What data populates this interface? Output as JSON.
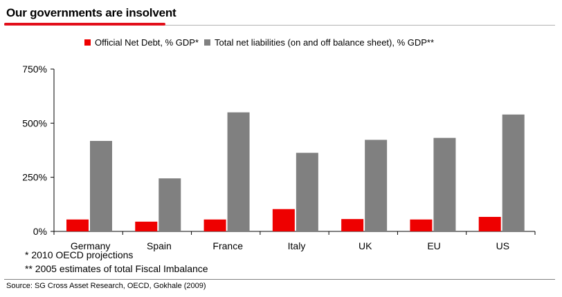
{
  "title": "Our governments are insolvent",
  "colors": {
    "accent": "#e20f1a",
    "series1": "#ee0000",
    "series2": "#808080",
    "axis": "#000000"
  },
  "notes": {
    "note1": "* 2010 OECD projections",
    "note2": "** 2005 estimates of total Fiscal Imbalance"
  },
  "source": "Source: SG Cross Asset Research, OECD, Gokhale (2009)",
  "chart_data": {
    "type": "bar",
    "categories": [
      "Germany",
      "Spain",
      "France",
      "Italy",
      "UK",
      "EU",
      "US"
    ],
    "series": [
      {
        "name": "Official Net Debt, % GDP*",
        "values": [
          55,
          45,
          55,
          103,
          57,
          55,
          67
        ]
      },
      {
        "name": "Total net liabilities (on and off balance sheet), % GDP**",
        "values": [
          418,
          245,
          550,
          363,
          423,
          432,
          540
        ]
      }
    ],
    "yticks": [
      "0%",
      "250%",
      "500%",
      "750%"
    ],
    "ytick_values": [
      0,
      250,
      500,
      750
    ],
    "ylim": [
      0,
      750
    ],
    "legend_position": "top",
    "grid": false,
    "xlabel": "",
    "ylabel": ""
  }
}
